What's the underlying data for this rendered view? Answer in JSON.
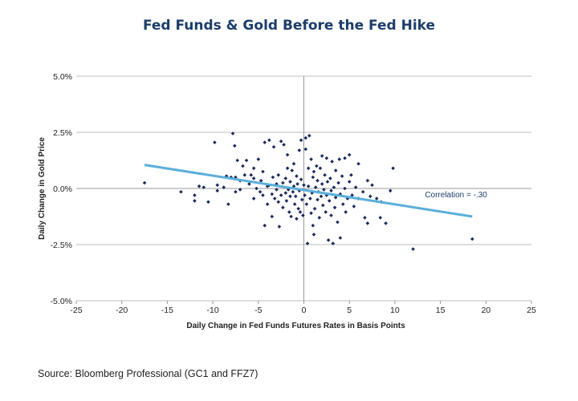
{
  "chart_data": {
    "type": "scatter",
    "title": "Fed Funds & Gold Before the Fed Hike",
    "xlabel": "Daily Change in Fed Funds Futures Rates in Basis Points",
    "ylabel": "Daily Change in Gold Price",
    "xlim": [
      -25,
      25
    ],
    "ylim": [
      -5.0,
      5.0
    ],
    "x_ticks": [
      -25,
      -20,
      -15,
      -10,
      -5,
      0,
      5,
      10,
      15,
      20,
      25
    ],
    "x_tick_labels": [
      "-25",
      "-20",
      "-15",
      "-10",
      "-5",
      "0",
      "5",
      "10",
      "15",
      "20",
      "25"
    ],
    "y_ticks": [
      -5.0,
      -2.5,
      0.0,
      2.5,
      5.0
    ],
    "y_tick_labels": [
      "-5.0%",
      "-2.5%",
      "0.0%",
      "2.5%",
      "5.0%"
    ],
    "grid": "horizontal",
    "trendline": {
      "x": [
        -17.5,
        18.5
      ],
      "y": [
        1.05,
        -1.25
      ]
    },
    "annotation": {
      "text": "Correlation = -.30",
      "x": 13.3,
      "y": -0.25
    },
    "points": [
      [
        -17.5,
        0.25
      ],
      [
        -13.5,
        -0.15
      ],
      [
        -12.0,
        -0.3
      ],
      [
        -12.0,
        -0.55
      ],
      [
        -11.5,
        0.1
      ],
      [
        -11.0,
        0.05
      ],
      [
        -10.5,
        -0.6
      ],
      [
        -9.8,
        2.05
      ],
      [
        -9.5,
        -0.1
      ],
      [
        -9.5,
        0.15
      ],
      [
        -8.8,
        0.05
      ],
      [
        -8.5,
        0.55
      ],
      [
        -8.3,
        -0.7
      ],
      [
        -8.0,
        0.5
      ],
      [
        -7.8,
        2.45
      ],
      [
        -7.6,
        1.9
      ],
      [
        -7.5,
        0.5
      ],
      [
        -7.5,
        -0.15
      ],
      [
        -7.3,
        1.25
      ],
      [
        -7.0,
        0.35
      ],
      [
        -7.0,
        -0.05
      ],
      [
        -6.7,
        1.0
      ],
      [
        -6.5,
        0.6
      ],
      [
        -6.3,
        1.25
      ],
      [
        -6.0,
        0.2
      ],
      [
        -5.8,
        0.6
      ],
      [
        -5.5,
        0.45
      ],
      [
        -5.5,
        -0.45
      ],
      [
        -5.5,
        0.9
      ],
      [
        -5.2,
        0.0
      ],
      [
        -5.0,
        1.3
      ],
      [
        -4.8,
        -0.15
      ],
      [
        -4.7,
        0.35
      ],
      [
        -4.5,
        -0.3
      ],
      [
        -4.5,
        0.75
      ],
      [
        -4.3,
        2.05
      ],
      [
        -4.3,
        -1.65
      ],
      [
        -4.0,
        0.1
      ],
      [
        -4.0,
        -0.7
      ],
      [
        -3.8,
        2.15
      ],
      [
        -3.8,
        0.15
      ],
      [
        -3.5,
        -0.25
      ],
      [
        -3.5,
        -1.25
      ],
      [
        -3.4,
        0.5
      ],
      [
        -3.3,
        1.85
      ],
      [
        -3.2,
        -0.45
      ],
      [
        -3.0,
        0.2
      ],
      [
        -3.0,
        -0.05
      ],
      [
        -2.8,
        0.6
      ],
      [
        -2.8,
        -0.6
      ],
      [
        -2.7,
        -1.7
      ],
      [
        -2.5,
        -0.3
      ],
      [
        -2.5,
        2.1
      ],
      [
        -2.3,
        0.25
      ],
      [
        -2.3,
        -0.85
      ],
      [
        -2.2,
        1.95
      ],
      [
        -2.0,
        0.45
      ],
      [
        -2.0,
        -0.2
      ],
      [
        -1.9,
        -0.55
      ],
      [
        -1.8,
        0.9
      ],
      [
        -1.8,
        1.5
      ],
      [
        -1.7,
        -0.05
      ],
      [
        -1.6,
        -1.05
      ],
      [
        -1.5,
        -0.35
      ],
      [
        -1.5,
        0.3
      ],
      [
        -1.4,
        -1.25
      ],
      [
        -1.3,
        0.8
      ],
      [
        -1.2,
        -0.15
      ],
      [
        -1.1,
        0.1
      ],
      [
        -1.1,
        1.1
      ],
      [
        -1.0,
        -0.7
      ],
      [
        -0.9,
        -0.35
      ],
      [
        -0.8,
        -1.35
      ],
      [
        -0.8,
        0.55
      ],
      [
        -0.7,
        0.2
      ],
      [
        -0.6,
        -0.9
      ],
      [
        -0.5,
        1.7
      ],
      [
        -0.5,
        -0.1
      ],
      [
        -0.4,
        -1.05
      ],
      [
        -0.3,
        0.4
      ],
      [
        -0.3,
        2.15
      ],
      [
        -0.2,
        -0.5
      ],
      [
        -0.1,
        -1.2
      ],
      [
        0.0,
        0.15
      ],
      [
        0.1,
        -0.3
      ],
      [
        0.2,
        2.25
      ],
      [
        0.2,
        1.75
      ],
      [
        0.3,
        -0.7
      ],
      [
        0.4,
        -2.45
      ],
      [
        0.5,
        0.9
      ],
      [
        0.5,
        0.1
      ],
      [
        0.6,
        2.35
      ],
      [
        0.7,
        -0.45
      ],
      [
        0.8,
        1.3
      ],
      [
        0.8,
        -1.1
      ],
      [
        0.9,
        -0.2
      ],
      [
        1.0,
        0.5
      ],
      [
        1.0,
        -1.65
      ],
      [
        1.1,
        0.75
      ],
      [
        1.1,
        -2.05
      ],
      [
        1.2,
        -0.9
      ],
      [
        1.3,
        0.05
      ],
      [
        1.4,
        1.0
      ],
      [
        1.5,
        -0.5
      ],
      [
        1.5,
        0.35
      ],
      [
        1.6,
        -0.15
      ],
      [
        1.7,
        -1.3
      ],
      [
        1.8,
        0.9
      ],
      [
        1.9,
        -0.35
      ],
      [
        2.0,
        0.2
      ],
      [
        2.0,
        1.45
      ],
      [
        2.1,
        -0.75
      ],
      [
        2.2,
        -0.05
      ],
      [
        2.3,
        0.6
      ],
      [
        2.4,
        -1.05
      ],
      [
        2.5,
        -0.3
      ],
      [
        2.5,
        1.35
      ],
      [
        2.6,
        0.3
      ],
      [
        2.7,
        -2.3
      ],
      [
        2.8,
        -0.55
      ],
      [
        2.9,
        0.45
      ],
      [
        3.0,
        -1.2
      ],
      [
        3.0,
        -0.1
      ],
      [
        3.1,
        1.2
      ],
      [
        3.2,
        -2.45
      ],
      [
        3.3,
        0.05
      ],
      [
        3.4,
        -0.85
      ],
      [
        3.5,
        0.8
      ],
      [
        3.5,
        -0.4
      ],
      [
        3.7,
        -1.5
      ],
      [
        3.8,
        0.25
      ],
      [
        3.9,
        1.3
      ],
      [
        4.0,
        -0.25
      ],
      [
        4.0,
        -2.2
      ],
      [
        4.2,
        0.55
      ],
      [
        4.3,
        -0.7
      ],
      [
        4.5,
        1.35
      ],
      [
        4.5,
        0.0
      ],
      [
        4.6,
        -1.05
      ],
      [
        4.8,
        -0.45
      ],
      [
        5.0,
        0.3
      ],
      [
        5.0,
        1.5
      ],
      [
        5.2,
        0.6
      ],
      [
        5.3,
        -0.3
      ],
      [
        5.5,
        -0.8
      ],
      [
        5.7,
        0.05
      ],
      [
        6.0,
        1.1
      ],
      [
        6.0,
        -0.45
      ],
      [
        6.5,
        -0.15
      ],
      [
        6.7,
        -1.3
      ],
      [
        7.0,
        0.35
      ],
      [
        7.0,
        -1.55
      ],
      [
        7.3,
        -0.35
      ],
      [
        7.5,
        0.15
      ],
      [
        8.0,
        -0.45
      ],
      [
        8.4,
        -1.3
      ],
      [
        8.5,
        -0.6
      ],
      [
        9.0,
        -1.55
      ],
      [
        9.5,
        -0.1
      ],
      [
        9.8,
        0.9
      ],
      [
        12.0,
        -2.7
      ],
      [
        18.5,
        -2.25
      ]
    ],
    "colors": {
      "points": "#1a2a5e",
      "trendline": "#5aafda",
      "grid": "#bdbdbd",
      "title": "#1c3d6b"
    }
  },
  "source": "Source: Bloomberg Professional (GC1 and FFZ7)"
}
